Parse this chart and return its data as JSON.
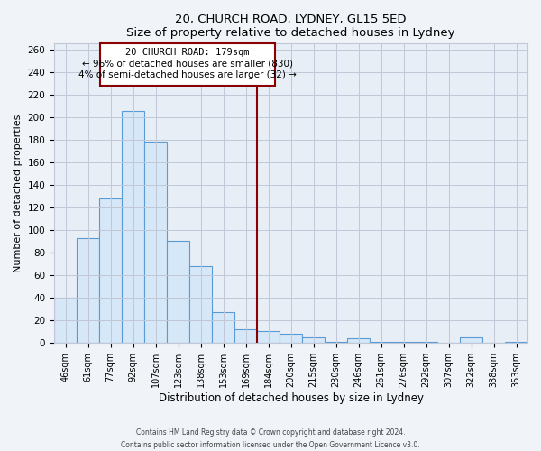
{
  "title": "20, CHURCH ROAD, LYDNEY, GL15 5ED",
  "subtitle": "Size of property relative to detached houses in Lydney",
  "xlabel": "Distribution of detached houses by size in Lydney",
  "ylabel": "Number of detached properties",
  "bar_labels": [
    "46sqm",
    "61sqm",
    "77sqm",
    "92sqm",
    "107sqm",
    "123sqm",
    "138sqm",
    "153sqm",
    "169sqm",
    "184sqm",
    "200sqm",
    "215sqm",
    "230sqm",
    "246sqm",
    "261sqm",
    "276sqm",
    "292sqm",
    "307sqm",
    "322sqm",
    "338sqm",
    "353sqm"
  ],
  "bar_values": [
    40,
    93,
    128,
    205,
    178,
    90,
    68,
    27,
    12,
    10,
    8,
    5,
    1,
    4,
    1,
    1,
    1,
    0,
    5,
    0,
    1
  ],
  "bar_color": "#d6e8f7",
  "bar_edge_color": "#5b9bd5",
  "vline_color": "#8b0000",
  "annotation_title": "20 CHURCH ROAD: 179sqm",
  "annotation_smaller": "← 96% of detached houses are smaller (830)",
  "annotation_larger": "4% of semi-detached houses are larger (32) →",
  "ylim": [
    0,
    265
  ],
  "yticks": [
    0,
    20,
    40,
    60,
    80,
    100,
    120,
    140,
    160,
    180,
    200,
    220,
    240,
    260
  ],
  "footer1": "Contains HM Land Registry data © Crown copyright and database right 2024.",
  "footer2": "Contains public sector information licensed under the Open Government Licence v3.0.",
  "background_color": "#f0f4f8",
  "plot_bg_color": "#e8eef5",
  "grid_color": "#c0c8d8"
}
